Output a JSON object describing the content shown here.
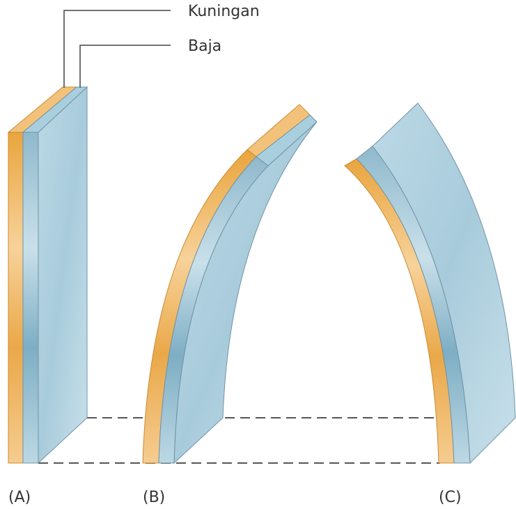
{
  "labels": {
    "brass": "Kuningan",
    "steel": "Baja"
  },
  "captions": [
    "(A)",
    "(B)",
    "(C)"
  ]
}
